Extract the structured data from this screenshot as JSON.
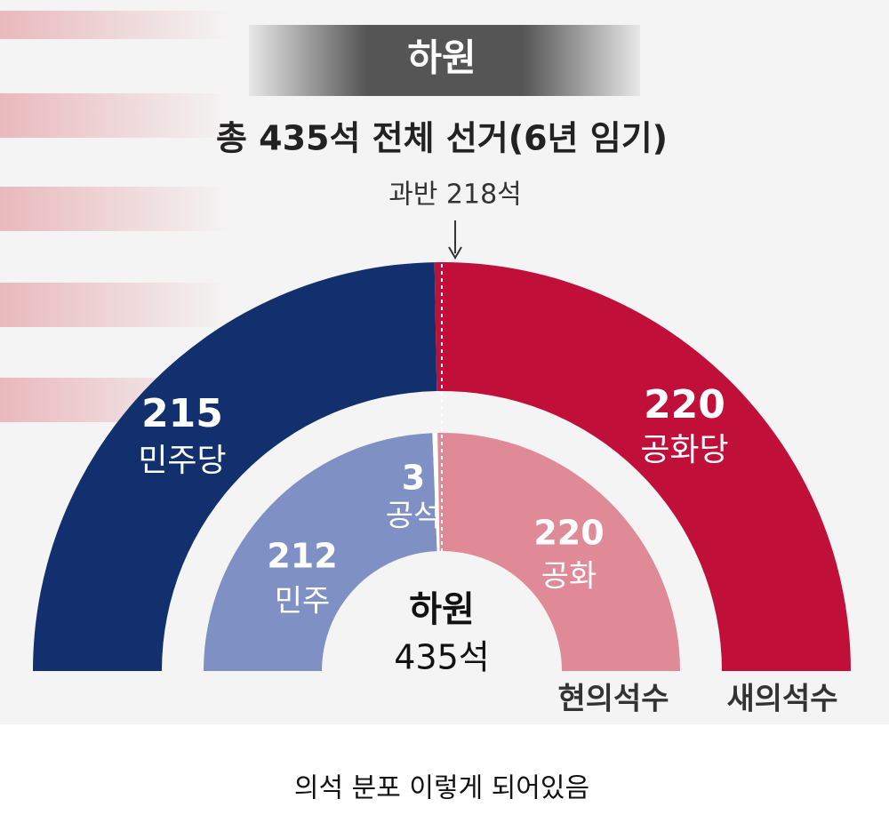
{
  "header": {
    "title": "하원",
    "subtitle": "총 435석 전체 선거(6년 임기)"
  },
  "chart_data": {
    "type": "semicircle",
    "annotation": "과반 218석",
    "center_title": "하원",
    "center_total": "435석",
    "rings": [
      {
        "name": "새의석수",
        "series": [
          {
            "name": "민주당",
            "color": "#13306e",
            "value": 215
          },
          {
            "name": "공화당",
            "color": "#c0103a",
            "value": 220
          }
        ]
      },
      {
        "name": "현의석수",
        "series": [
          {
            "name": "민주",
            "color": "#7f90c4",
            "value": 212
          },
          {
            "name": "공석",
            "color": "#ffffff",
            "value": 3
          },
          {
            "name": "공화",
            "color": "#e08a98",
            "value": 220
          }
        ]
      }
    ]
  },
  "caption": "의석 분포 이렇게 되어있음"
}
